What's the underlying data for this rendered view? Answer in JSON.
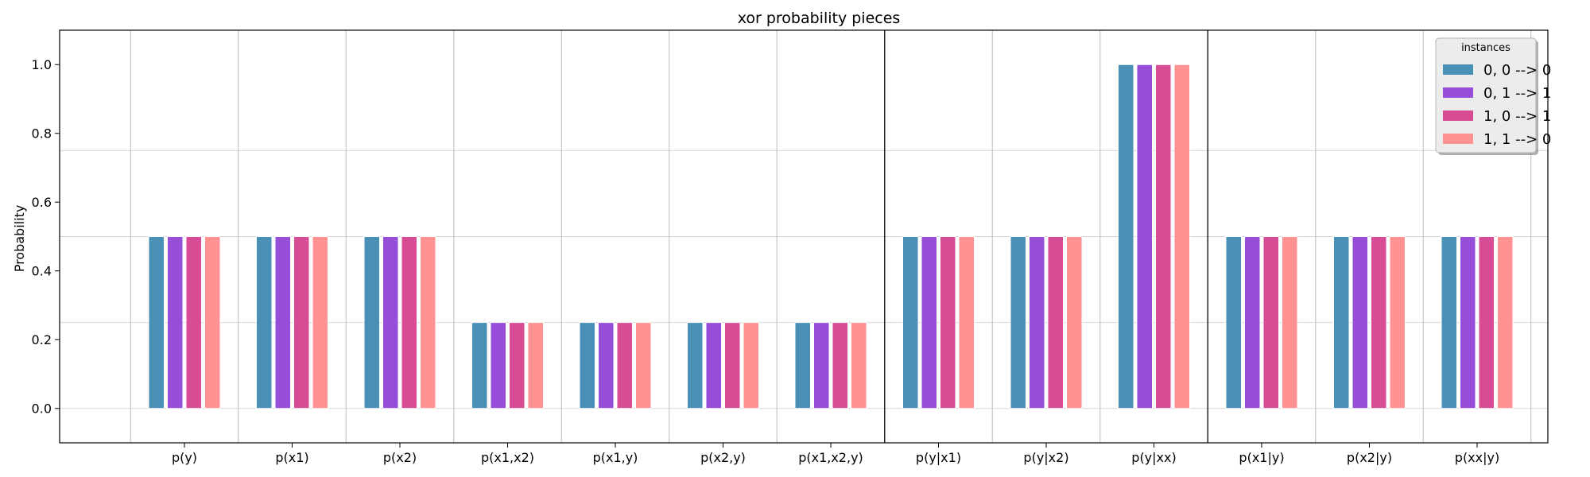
{
  "chart_data": {
    "type": "bar",
    "title": "xor probability pieces",
    "ylabel": "Probability",
    "xlabel": "",
    "ylim": [
      -0.1,
      1.1
    ],
    "yticks": [
      0.0,
      0.2,
      0.4,
      0.6,
      0.8,
      1.0
    ],
    "ytick_labels": [
      "0.0",
      "0.2",
      "0.4",
      "0.6",
      "0.8",
      "1.0"
    ],
    "hgrid_lines": [
      0.0,
      0.25,
      0.5,
      0.75
    ],
    "section_dividers_after": [
      7,
      10
    ],
    "categories": [
      "p(y)",
      "p(x1)",
      "p(x2)",
      "p(x1,x2)",
      "p(x1,y)",
      "p(x2,y)",
      "p(x1,x2,y)",
      "p(y|x1)",
      "p(y|x2)",
      "p(y|xx)",
      "p(x1|y)",
      "p(x2|y)",
      "p(xx|y)"
    ],
    "legend": {
      "title": "instances",
      "placement": "top-right"
    },
    "series": [
      {
        "name": "0, 0 --> 0",
        "color": "#4a90b6",
        "values": [
          0.5,
          0.5,
          0.5,
          0.25,
          0.25,
          0.25,
          0.25,
          0.5,
          0.5,
          1.0,
          0.5,
          0.5,
          0.5
        ]
      },
      {
        "name": "0, 1 --> 1",
        "color": "#964ed9",
        "values": [
          0.5,
          0.5,
          0.5,
          0.25,
          0.25,
          0.25,
          0.25,
          0.5,
          0.5,
          1.0,
          0.5,
          0.5,
          0.5
        ]
      },
      {
        "name": "1, 0 --> 1",
        "color": "#d84b95",
        "values": [
          0.5,
          0.5,
          0.5,
          0.25,
          0.25,
          0.25,
          0.25,
          0.5,
          0.5,
          1.0,
          0.5,
          0.5,
          0.5
        ]
      },
      {
        "name": "1, 1 --> 0",
        "color": "#fd9291",
        "values": [
          0.5,
          0.5,
          0.5,
          0.25,
          0.25,
          0.25,
          0.25,
          0.5,
          0.5,
          1.0,
          0.5,
          0.5,
          0.5
        ]
      }
    ]
  }
}
